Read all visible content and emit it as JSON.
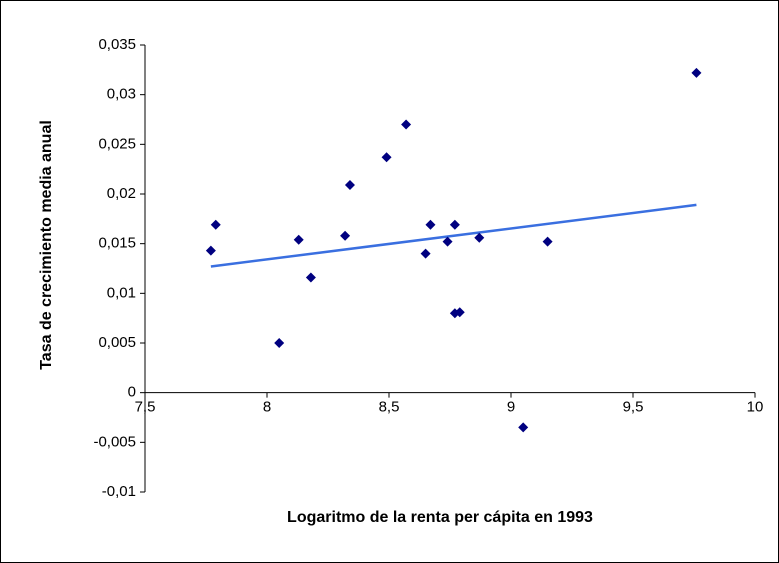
{
  "chart_data": {
    "type": "scatter",
    "x_label": "Logaritmo de la renta per cápita en 1993",
    "y_label": "Tasa de crecimiento media anual",
    "series": [
      {
        "color": "#000080",
        "x": [
          7.77,
          7.79,
          8.05,
          8.13,
          8.18,
          8.32,
          8.34,
          8.49,
          8.57,
          8.65,
          8.67,
          8.74,
          8.77,
          8.77,
          8.79,
          8.87,
          9.05,
          9.15,
          9.76
        ],
        "values": [
          0.0143,
          0.0169,
          0.005,
          0.0154,
          0.0116,
          0.0158,
          0.0209,
          0.0237,
          0.027,
          0.014,
          0.0169,
          0.0152,
          0.0169,
          0.008,
          0.0081,
          0.0156,
          -0.0035,
          0.0152,
          0.0322
        ]
      }
    ],
    "trendline": {
      "color": "#3a6fe0",
      "x": [
        7.77,
        9.76
      ],
      "values": [
        0.0127,
        0.0189
      ]
    },
    "xlim": [
      7.5,
      10
    ],
    "xticks": [
      {
        "value": 7.5,
        "label": "7,5"
      },
      8,
      {
        "value": 8.5,
        "label": "8,5"
      },
      9,
      {
        "value": 9.5,
        "label": "9,5"
      },
      10
    ],
    "ylim": [
      -0.01,
      0.035
    ],
    "yticks": [
      {
        "value": -0.01,
        "label": "-0,01"
      },
      {
        "value": -0.005,
        "label": "-0,005"
      },
      0,
      {
        "value": 0.005,
        "label": "0,005"
      },
      {
        "value": 0.01,
        "label": "0,01"
      },
      {
        "value": 0.015,
        "label": "0,015"
      },
      {
        "value": 0.02,
        "label": "0,02"
      },
      {
        "value": 0.025,
        "label": "0,025"
      },
      {
        "value": 0.03,
        "label": "0,03"
      },
      {
        "value": 0.035,
        "label": "0,035"
      }
    ]
  }
}
